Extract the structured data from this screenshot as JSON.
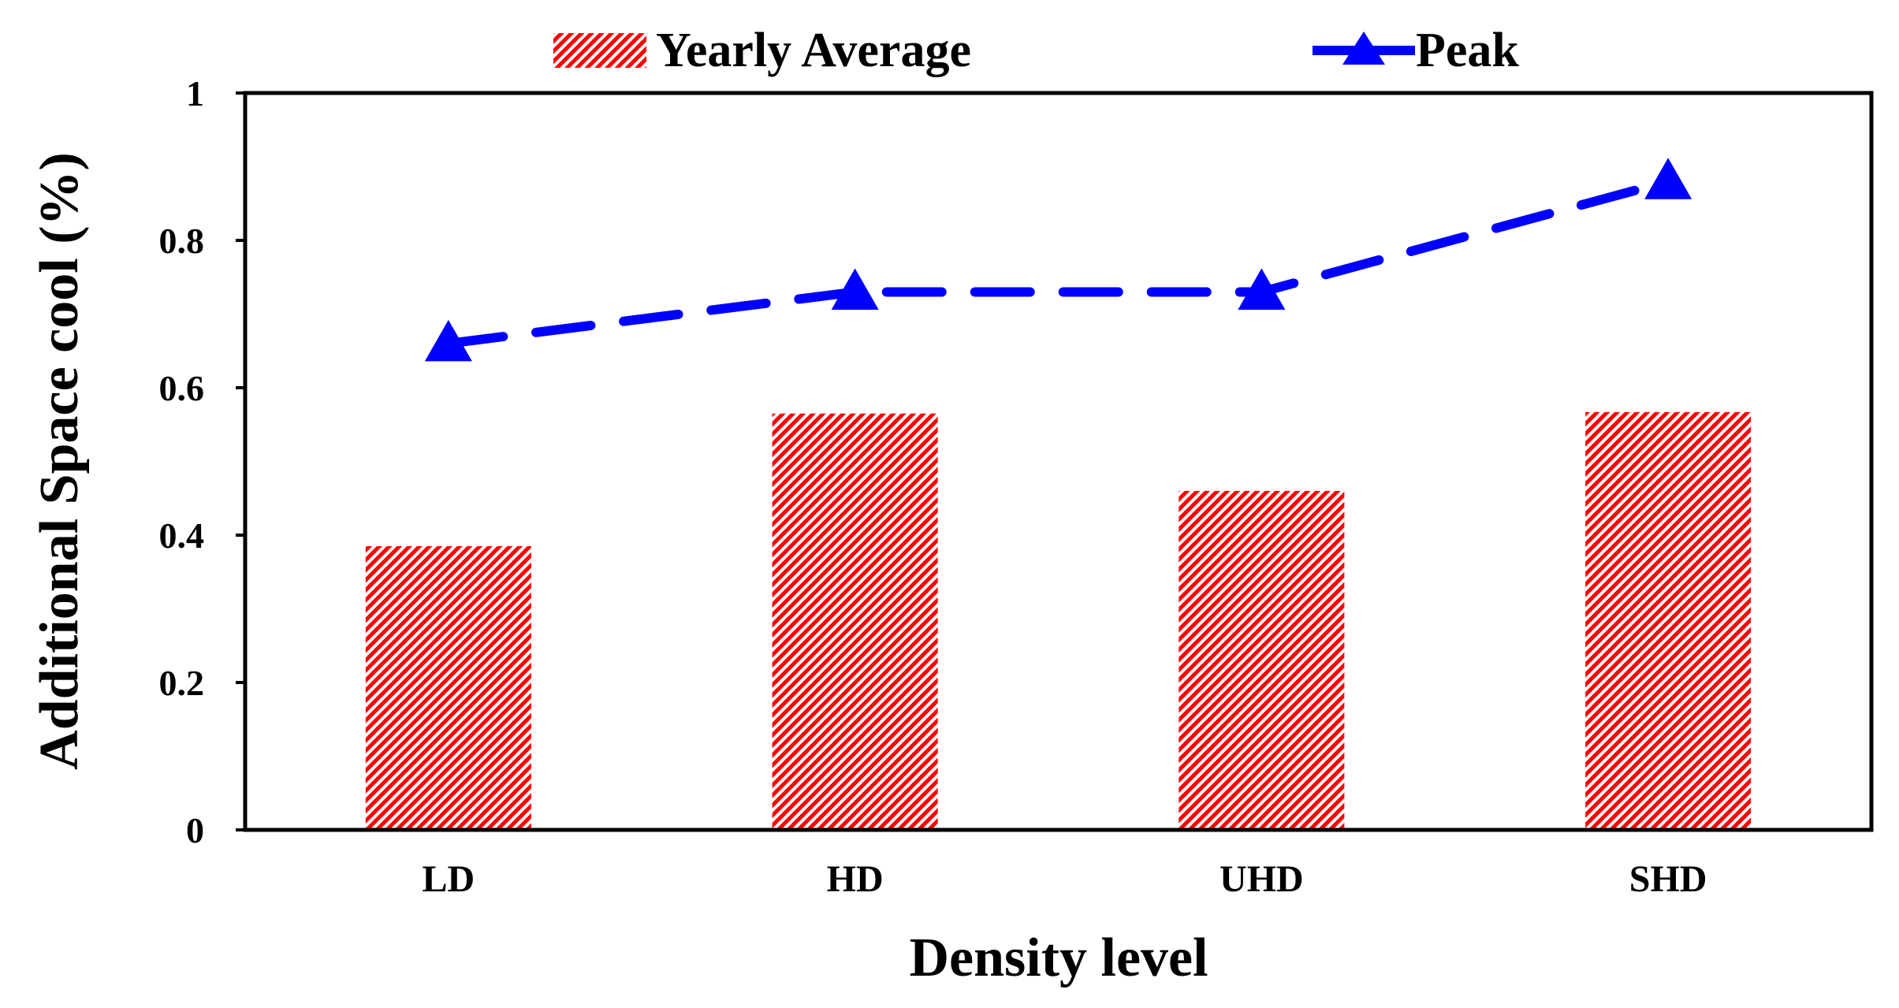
{
  "chart_data": {
    "type": "bar",
    "title": "",
    "xlabel": "Density level",
    "ylabel": "Additional Space cool (%)",
    "categories": [
      "LD",
      "HD",
      "UHD",
      "SHD"
    ],
    "ylim": [
      0,
      1
    ],
    "yticks": [
      0,
      0.2,
      0.4,
      0.6,
      0.8,
      1
    ],
    "ytick_labels": [
      "0",
      "0.2",
      "0.4",
      "0.6",
      "0.8",
      "1"
    ],
    "grid": false,
    "legend_position": "top",
    "series": [
      {
        "name": "Yearly Average",
        "kind": "bar",
        "pattern": "diagonal-hatch",
        "color": "#ff0000",
        "values": [
          0.385,
          0.565,
          0.46,
          0.567
        ]
      },
      {
        "name": "Peak",
        "kind": "line",
        "line_style": "dashed",
        "marker": "triangle",
        "color": "#0000ff",
        "values": [
          0.66,
          0.73,
          0.73,
          0.88
        ]
      }
    ]
  }
}
